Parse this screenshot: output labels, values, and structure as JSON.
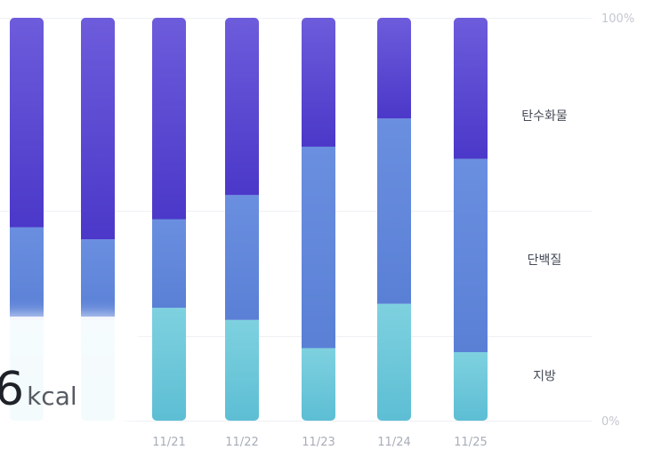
{
  "chart_data": {
    "type": "bar",
    "stacked": true,
    "normalized": true,
    "categories": [
      "",
      "",
      "11/21",
      "11/22",
      "11/23",
      "11/24",
      "11/25"
    ],
    "series": [
      {
        "name": "지방",
        "color_top": "#7ed1df",
        "color_bottom": "#5dbed4",
        "values": [
          0.25,
          0.25,
          0.28,
          0.25,
          0.18,
          0.29,
          0.17
        ]
      },
      {
        "name": "단백질",
        "color_top": "#6a8fe0",
        "color_bottom": "#5a80d6",
        "values": [
          0.23,
          0.2,
          0.22,
          0.31,
          0.5,
          0.46,
          0.48
        ]
      },
      {
        "name": "탄수화물",
        "color_top": "#6d5cdb",
        "color_bottom": "#4b38c9",
        "values": [
          0.52,
          0.55,
          0.5,
          0.44,
          0.32,
          0.25,
          0.35
        ]
      }
    ],
    "y_ticks": [
      {
        "label": "100%",
        "value": 1
      },
      {
        "label": "0%",
        "value": 0
      }
    ],
    "gridlines_at": [
      1,
      0.52,
      0.21,
      0
    ],
    "ylim": [
      0,
      1
    ],
    "legend_placement": "right"
  },
  "kcal_overlay": {
    "value": "6",
    "unit": "kcal"
  }
}
